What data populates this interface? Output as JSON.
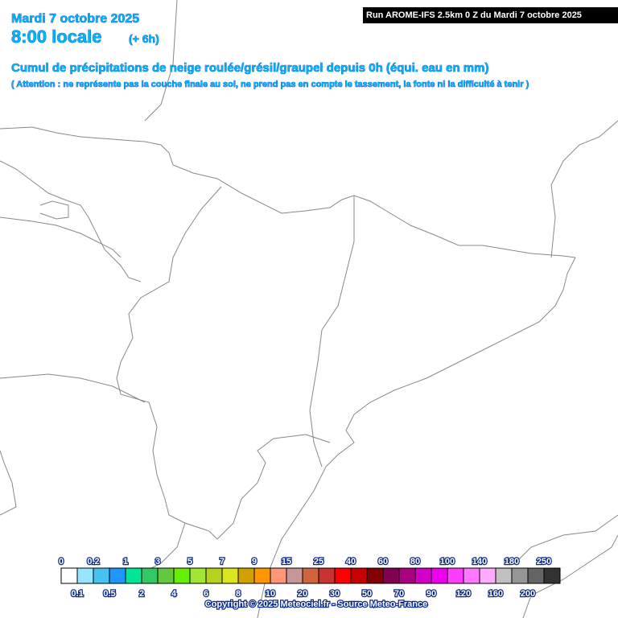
{
  "header": {
    "date": "Mardi 7 octobre 2025",
    "time": "8:00 locale",
    "lead": "(+ 6h)",
    "run": "Run AROME-IFS 2.5km 0 Z du Mardi 7 octobre 2025",
    "title": "Cumul de précipitations de neige roulée/grésil/graupel depuis 0h (équi. eau en mm)",
    "warning": "( Attention : ne représente pas la couche finale au sol, ne prend pas en compte le tassement, la fonte ni la difficulté à tenir )"
  },
  "legend": {
    "thresholds": [
      0,
      0.1,
      0.2,
      0.5,
      1,
      2,
      3,
      4,
      5,
      6,
      7,
      8,
      9,
      10,
      15,
      20,
      25,
      30,
      40,
      50,
      60,
      70,
      80,
      90,
      100,
      120,
      140,
      160,
      180,
      200,
      250
    ],
    "colors": [
      "#ffffff",
      "#96e6ff",
      "#46c3f0",
      "#1e96ff",
      "#00e696",
      "#32c864",
      "#64c83c",
      "#64f000",
      "#a0e632",
      "#b4d21e",
      "#dce61e",
      "#d2a000",
      "#ff9600",
      "#ff9678",
      "#c89696",
      "#d2643c",
      "#c83232",
      "#ff0000",
      "#c80000",
      "#820000",
      "#820050",
      "#aa0082",
      "#d200c8",
      "#f000f0",
      "#ff3cff",
      "#ff78ff",
      "#ffaaff",
      "#c0c0c0",
      "#969696",
      "#646464",
      "#323232"
    ]
  },
  "footer": "Copyright © 2025 Meteociel.fr - Source Meteo-France"
}
